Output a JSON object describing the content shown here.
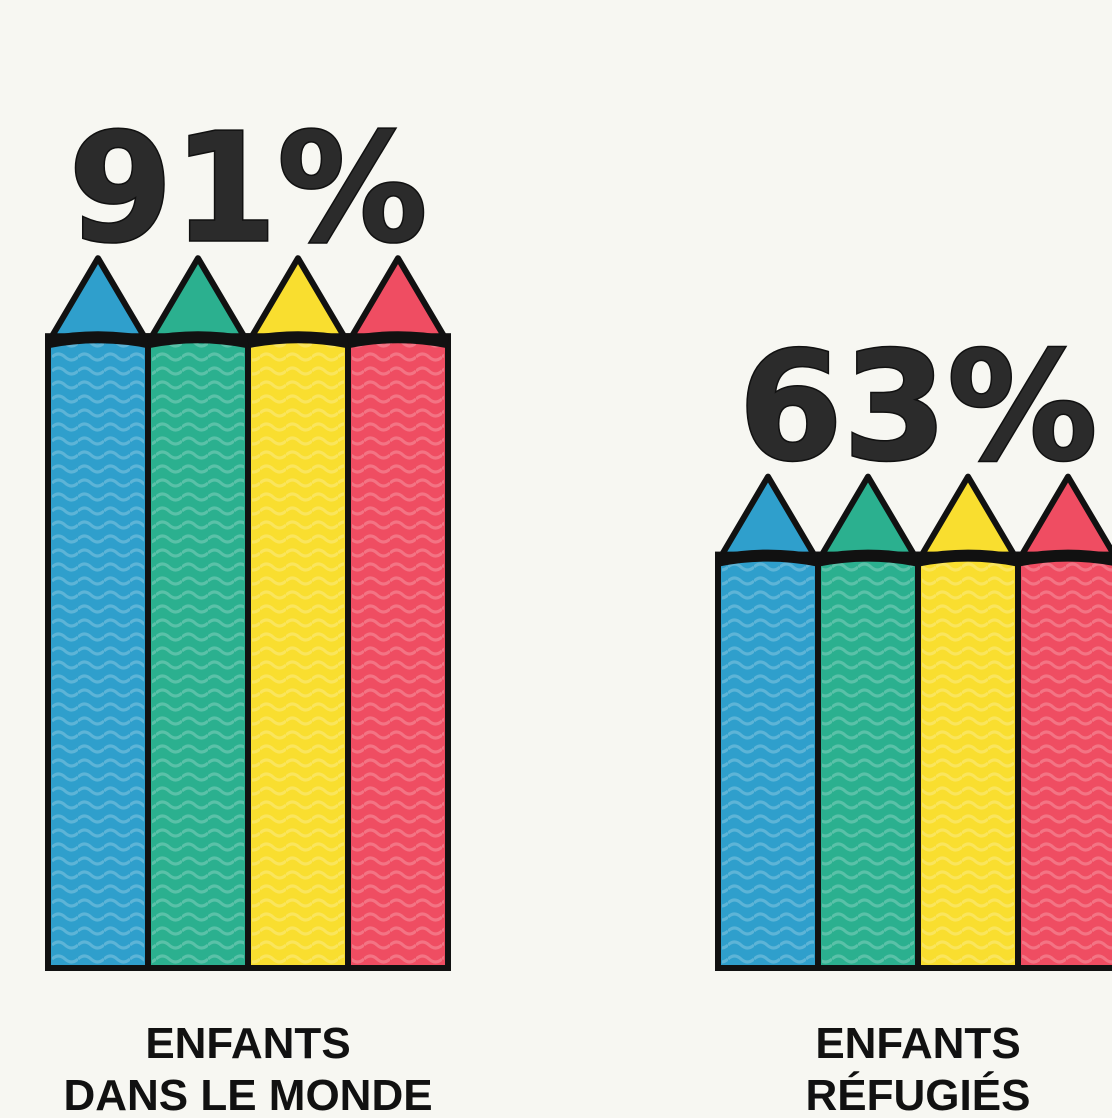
{
  "chart_data": {
    "type": "bar",
    "categories": [
      [
        "ENFANTS",
        "DANS LE MONDE"
      ],
      [
        "ENFANTS",
        "RÉFUGIÉS"
      ]
    ],
    "values": [
      91,
      63
    ],
    "value_labels": [
      "91%",
      "63%"
    ],
    "unit": "%",
    "ylim": [
      0,
      100
    ],
    "bar_style": "crayons",
    "crayon_colors": [
      "#2f9fcc",
      "#2bb08f",
      "#f9de2f",
      "#ef4d62"
    ],
    "outline_color": "#111111",
    "label_color": "#2b2b2b",
    "grid": false,
    "legend": "none"
  }
}
